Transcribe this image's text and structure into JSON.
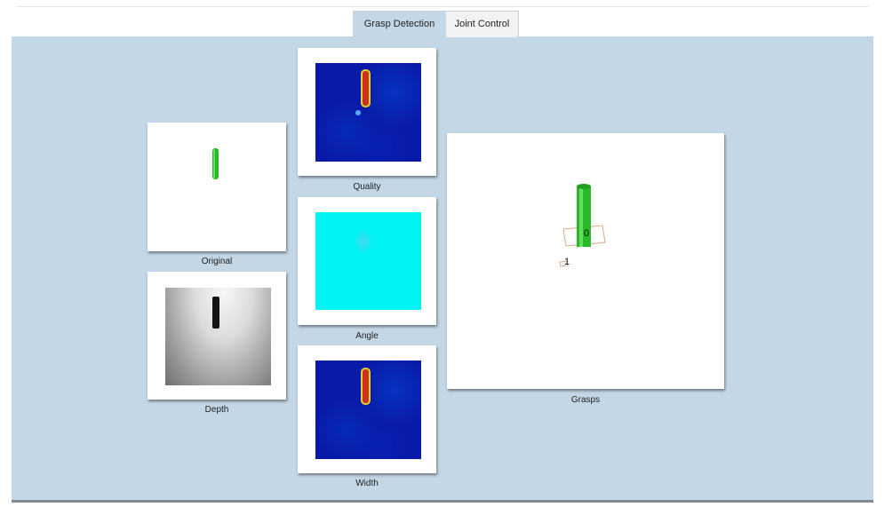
{
  "tabs": [
    {
      "label": "Grasp Detection",
      "active": true
    },
    {
      "label": "Joint Control",
      "active": false
    }
  ],
  "panels": {
    "original": {
      "label": "Original"
    },
    "depth": {
      "label": "Depth"
    },
    "quality": {
      "label": "Quality"
    },
    "angle": {
      "label": "Angle"
    },
    "width": {
      "label": "Width"
    },
    "grasps": {
      "label": "Grasps",
      "grasp_ids": [
        "0",
        "1"
      ]
    }
  },
  "colors": {
    "panel_background": "#c3d7e7",
    "object_green": "#2ab82a",
    "heatmap_low": "#0a1aa8",
    "heatmap_high": "#c8321e",
    "angle_field": "#00f2f2"
  }
}
